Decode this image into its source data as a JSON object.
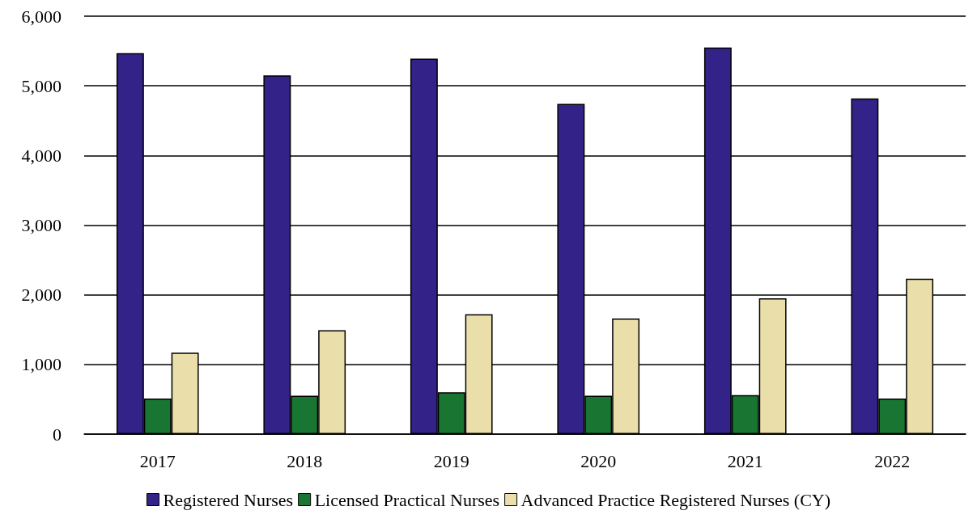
{
  "chart_data": {
    "type": "bar",
    "categories": [
      "2017",
      "2018",
      "2019",
      "2020",
      "2021",
      "2022"
    ],
    "series": [
      {
        "name": "Registered Nurses",
        "color": "#332288",
        "values": [
          5470,
          5150,
          5390,
          4740,
          5550,
          4820
        ]
      },
      {
        "name": "Licensed Practical Nurses",
        "color": "#187632",
        "values": [
          510,
          550,
          600,
          550,
          560,
          510
        ]
      },
      {
        "name": "Advanced Practice Registered Nurses (CY)",
        "color": "#eadfaa",
        "values": [
          1170,
          1490,
          1720,
          1660,
          1950,
          2230
        ]
      }
    ],
    "ylim": [
      0,
      6000
    ],
    "yticks": [
      {
        "value": 0,
        "label": "0"
      },
      {
        "value": 1000,
        "label": "1,000"
      },
      {
        "value": 2000,
        "label": "2,000"
      },
      {
        "value": 3000,
        "label": "3,000"
      },
      {
        "value": 4000,
        "label": "4,000"
      },
      {
        "value": 5000,
        "label": "5,000"
      },
      {
        "value": 6000,
        "label": "6,000"
      }
    ],
    "grid": "y",
    "legend": "bottom"
  }
}
